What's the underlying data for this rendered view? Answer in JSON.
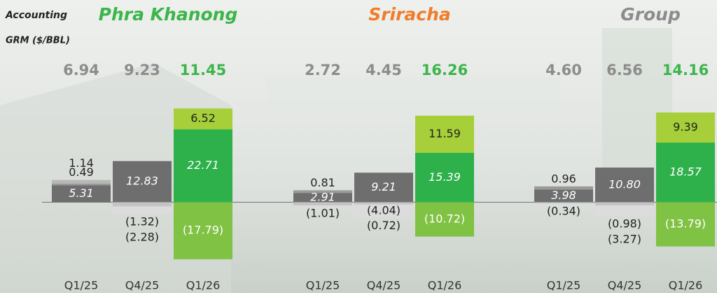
{
  "label_lines": [
    "Accounting",
    "GRM ($/BBL)"
  ],
  "chart_data": [
    {
      "type": "bar",
      "title": "Phra Khanong",
      "title_color": "#3cb54a",
      "categories": [
        "Q1/25",
        "Q4/25",
        "Q1/26"
      ],
      "ylim": [
        -20,
        39
      ],
      "totals": {
        "values": [
          6.94,
          9.23,
          11.45
        ],
        "value_labels": [
          "6.94",
          "9.23",
          "11.45"
        ],
        "colors": [
          "#8c8c8c",
          "#8c8c8c",
          "#3cb54a"
        ]
      },
      "series": [
        {
          "values": [
            5.31,
            12.83,
            22.71
          ],
          "colors": [
            "#6e6e6e",
            "#6e6e6e",
            "#2eb04b"
          ],
          "label_colors": [
            "#ffffff",
            "#ffffff",
            "#ffffff"
          ],
          "italic": true
        },
        {
          "values": [
            0.49,
            -1.32,
            6.52
          ],
          "value_labels": [
            "0.49",
            "(1.32)",
            "6.52"
          ],
          "colors": [
            "#9a9a9a",
            "#c4c4c4",
            "#a6cf39"
          ],
          "label_colors": [
            "#222222",
            "#222222",
            "#222222"
          ]
        },
        {
          "values": [
            1.14,
            -2.28,
            -17.79
          ],
          "value_labels": [
            "1.14",
            "(2.28)",
            "(17.79)"
          ],
          "colors": [
            "#b8b8b8",
            "#dcdcdc",
            "#80c243"
          ],
          "label_colors": [
            "#222222",
            "#222222",
            "#ffffff"
          ]
        }
      ]
    },
    {
      "type": "bar",
      "title": "Sriracha",
      "title_color": "#f07d2a",
      "categories": [
        "Q1/25",
        "Q4/25",
        "Q1/26"
      ],
      "ylim": [
        -20,
        39
      ],
      "totals": {
        "values": [
          2.72,
          4.45,
          16.26
        ],
        "value_labels": [
          "2.72",
          "4.45",
          "16.26"
        ],
        "colors": [
          "#8c8c8c",
          "#8c8c8c",
          "#3cb54a"
        ]
      },
      "series": [
        {
          "values": [
            2.91,
            9.21,
            15.39
          ],
          "colors": [
            "#6e6e6e",
            "#6e6e6e",
            "#2eb04b"
          ],
          "label_colors": [
            "#ffffff",
            "#ffffff",
            "#ffffff"
          ],
          "italic": true
        },
        {
          "values": [
            0.81,
            -0.72,
            11.59
          ],
          "value_labels": [
            "0.81",
            "(0.72)",
            "11.59"
          ],
          "colors": [
            "#9a9a9a",
            "#c4c4c4",
            "#a6cf39"
          ],
          "label_colors": [
            "#222222",
            "#222222",
            "#222222"
          ]
        },
        {
          "values": [
            -1.01,
            -4.04,
            -10.72
          ],
          "value_labels": [
            "(1.01)",
            "(4.04)",
            "(10.72)"
          ],
          "colors": [
            "#c4c4c4",
            "#dcdcdc",
            "#80c243"
          ],
          "label_colors": [
            "#222222",
            "#222222",
            "#ffffff"
          ]
        }
      ]
    },
    {
      "type": "bar",
      "title": "Group",
      "title_color": "#8c8c8c",
      "categories": [
        "Q1/25",
        "Q4/25",
        "Q1/26"
      ],
      "ylim": [
        -20,
        39
      ],
      "totals": {
        "values": [
          4.6,
          6.56,
          14.16
        ],
        "value_labels": [
          "4.60",
          "6.56",
          "14.16"
        ],
        "colors": [
          "#8c8c8c",
          "#8c8c8c",
          "#3cb54a"
        ]
      },
      "series": [
        {
          "values": [
            3.98,
            10.8,
            18.57
          ],
          "value_labels": [
            "3.98",
            "10.80",
            "18.57"
          ],
          "colors": [
            "#6e6e6e",
            "#6e6e6e",
            "#2eb04b"
          ],
          "label_colors": [
            "#ffffff",
            "#ffffff",
            "#ffffff"
          ],
          "italic": true
        },
        {
          "values": [
            0.96,
            -0.98,
            9.39
          ],
          "value_labels": [
            "0.96",
            "(0.98)",
            "9.39"
          ],
          "colors": [
            "#9a9a9a",
            "#c4c4c4",
            "#a6cf39"
          ],
          "label_colors": [
            "#222222",
            "#222222",
            "#222222"
          ]
        },
        {
          "values": [
            -0.34,
            -3.27,
            -13.79
          ],
          "value_labels": [
            "(0.34)",
            "(3.27)",
            "(13.79)"
          ],
          "colors": [
            "#c4c4c4",
            "#dcdcdc",
            "#80c243"
          ],
          "label_colors": [
            "#222222",
            "#222222",
            "#ffffff"
          ]
        }
      ]
    }
  ]
}
